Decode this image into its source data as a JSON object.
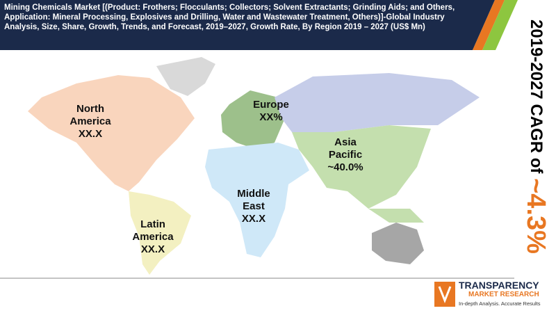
{
  "header": {
    "title": "Mining Chemicals Market [(Product: Frothers; Flocculants; Collectors; Solvent Extractants; Grinding Aids; and Others, Application: Mineral Processing, Explosives and Drilling, Water and Wastewater Treatment, Others)]-Global Industry Analysis,  Size, Share, Growth, Trends, and Forecast, 2019–2027, Growth Rate, By Region 2019 – 2027 (US$ Mn)"
  },
  "regions": [
    {
      "name": "North America",
      "value": "XX.X"
    },
    {
      "name": "Europe",
      "value": "XX%"
    },
    {
      "name": "Asia Pacific",
      "value": "~40.0%"
    },
    {
      "name": "Middle East",
      "value": "XX.X"
    },
    {
      "name": "Latin America",
      "value": "XX.X"
    }
  ],
  "cagr": {
    "label": "2019-2027 CAGR of",
    "value": "~4.3%"
  },
  "logo": {
    "name": "TRANSPARENCY",
    "sub": "MARKET RESEARCH",
    "tagline": "In-depth Analysis. Accurate Results"
  }
}
